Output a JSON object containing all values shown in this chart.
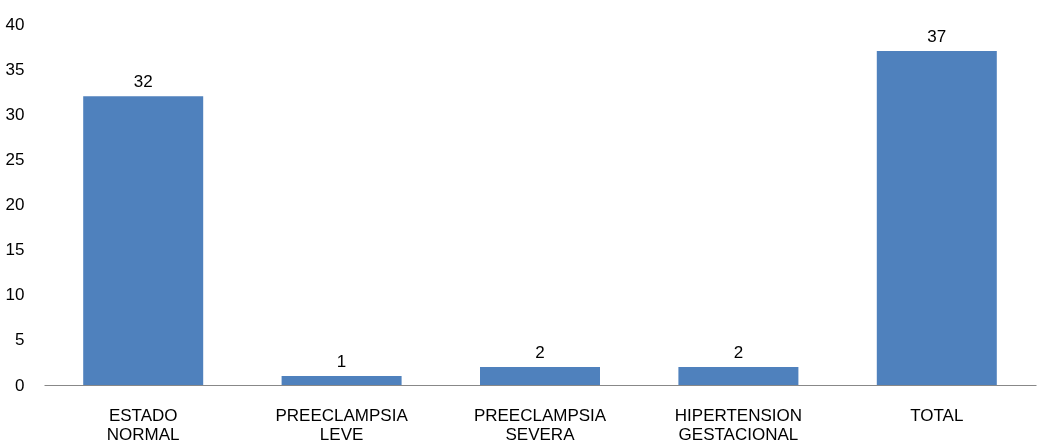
{
  "chart_data": {
    "type": "bar",
    "categories": [
      "ESTADO NORMAL",
      "PREECLAMPSIA LEVE",
      "PREECLAMPSIA SEVERA",
      "HIPERTENSION GESTACIONAL",
      "TOTAL"
    ],
    "values": [
      32,
      1,
      2,
      2,
      37
    ],
    "color": "#4f81bd",
    "ylim": [
      0,
      40
    ],
    "yticks": [
      0,
      5,
      10,
      15,
      20,
      25,
      30,
      35,
      40
    ],
    "grid": false,
    "data_labels": true
  }
}
